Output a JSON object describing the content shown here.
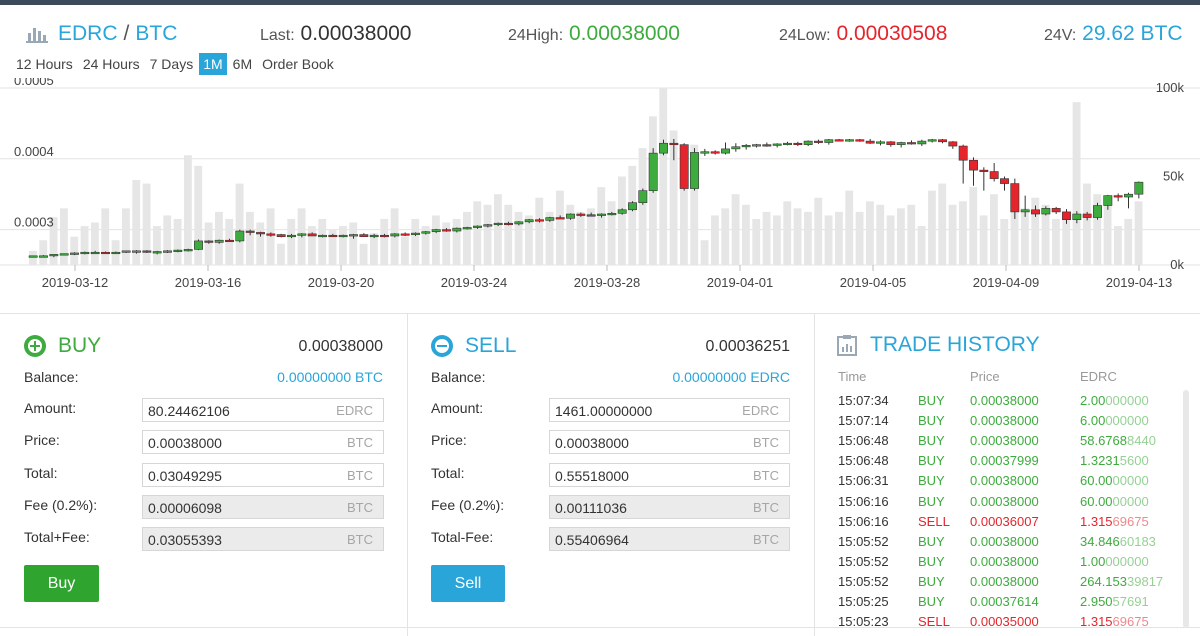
{
  "header": {
    "base": "EDRC",
    "quote": "BTC",
    "last_label": "Last:",
    "last_value": "0.00038000",
    "high_label": "24High:",
    "high_value": "0.00038000",
    "low_label": "24Low:",
    "low_value": "0.00030508",
    "vol_label": "24V:",
    "vol_value": "29.62 BTC"
  },
  "tabs": [
    "12 Hours",
    "24 Hours",
    "7 Days",
    "1M",
    "6M",
    "Order Book"
  ],
  "active_tab": "1M",
  "colors": {
    "up": "#3eab3e",
    "down": "#e5242b",
    "accent": "#29a5d9",
    "volume": "#e6e6e6"
  },
  "chart_data": {
    "type": "candlestick",
    "price_axis": {
      "range": [
        0.00025,
        0.0005
      ],
      "ticks": [
        "0.0005",
        "0.0004",
        "0.0003"
      ]
    },
    "volume_axis": {
      "range": [
        0,
        100000
      ],
      "ticks": [
        "100k",
        "50k",
        "0k"
      ]
    },
    "x_ticks": [
      "2019-03-12",
      "2019-03-16",
      "2019-03-20",
      "2019-03-24",
      "2019-03-28",
      "2019-04-01",
      "2019-04-05",
      "2019-04-09",
      "2019-04-13"
    ],
    "candles": [
      {
        "o": 0.000262,
        "h": 0.000263,
        "l": 0.000261,
        "c": 0.000263,
        "v": 8000
      },
      {
        "o": 0.000263,
        "h": 0.000264,
        "l": 0.000262,
        "c": 0.000263,
        "v": 14000
      },
      {
        "o": 0.000263,
        "h": 0.000265,
        "l": 0.000261,
        "c": 0.000265,
        "v": 27000
      },
      {
        "o": 0.000265,
        "h": 0.000266,
        "l": 0.000264,
        "c": 0.000266,
        "v": 32000
      },
      {
        "o": 0.000266,
        "h": 0.000268,
        "l": 0.000264,
        "c": 0.000267,
        "v": 16000
      },
      {
        "o": 0.000267,
        "h": 0.000269,
        "l": 0.000265,
        "c": 0.000268,
        "v": 22000
      },
      {
        "o": 0.000268,
        "h": 0.00027,
        "l": 0.000266,
        "c": 0.000268,
        "v": 24000
      },
      {
        "o": 0.000268,
        "h": 0.000269,
        "l": 0.000266,
        "c": 0.000267,
        "v": 32000
      },
      {
        "o": 0.000267,
        "h": 0.000269,
        "l": 0.000266,
        "c": 0.000268,
        "v": 14000
      },
      {
        "o": 0.000268,
        "h": 0.00027,
        "l": 0.000267,
        "c": 0.00027,
        "v": 32000
      },
      {
        "o": 0.00027,
        "h": 0.000271,
        "l": 0.000266,
        "c": 0.00027,
        "v": 48000
      },
      {
        "o": 0.00027,
        "h": 0.000271,
        "l": 0.000267,
        "c": 0.000268,
        "v": 46000
      },
      {
        "o": 0.000268,
        "h": 0.00027,
        "l": 0.000265,
        "c": 0.000269,
        "v": 22000
      },
      {
        "o": 0.000269,
        "h": 0.000271,
        "l": 0.000267,
        "c": 0.00027,
        "v": 28000
      },
      {
        "o": 0.00027,
        "h": 0.000272,
        "l": 0.000268,
        "c": 0.000271,
        "v": 26000
      },
      {
        "o": 0.000271,
        "h": 0.000273,
        "l": 0.000269,
        "c": 0.000272,
        "v": 62000
      },
      {
        "o": 0.000272,
        "h": 0.000286,
        "l": 0.000271,
        "c": 0.000284,
        "v": 56000
      },
      {
        "o": 0.000284,
        "h": 0.000285,
        "l": 0.00028,
        "c": 0.000282,
        "v": 24000
      },
      {
        "o": 0.000282,
        "h": 0.000286,
        "l": 0.00028,
        "c": 0.000285,
        "v": 30000
      },
      {
        "o": 0.000285,
        "h": 0.000287,
        "l": 0.000283,
        "c": 0.000284,
        "v": 26000
      },
      {
        "o": 0.000284,
        "h": 0.0003,
        "l": 0.000282,
        "c": 0.000298,
        "v": 46000
      },
      {
        "o": 0.000298,
        "h": 0.0003,
        "l": 0.000292,
        "c": 0.000296,
        "v": 30000
      },
      {
        "o": 0.000296,
        "h": 0.000297,
        "l": 0.00029,
        "c": 0.000294,
        "v": 24000
      },
      {
        "o": 0.000294,
        "h": 0.000296,
        "l": 0.00029,
        "c": 0.000293,
        "v": 32000
      },
      {
        "o": 0.000293,
        "h": 0.000294,
        "l": 0.000289,
        "c": 0.00029,
        "v": 12000
      },
      {
        "o": 0.00029,
        "h": 0.000294,
        "l": 0.000288,
        "c": 0.000292,
        "v": 26000
      },
      {
        "o": 0.000292,
        "h": 0.000295,
        "l": 0.000289,
        "c": 0.000294,
        "v": 32000
      },
      {
        "o": 0.000294,
        "h": 0.000296,
        "l": 0.000291,
        "c": 0.000291,
        "v": 22000
      },
      {
        "o": 0.000291,
        "h": 0.000293,
        "l": 0.000289,
        "c": 0.000292,
        "v": 26000
      },
      {
        "o": 0.000292,
        "h": 0.000294,
        "l": 0.00029,
        "c": 0.000291,
        "v": 20000
      },
      {
        "o": 0.000291,
        "h": 0.000293,
        "l": 0.000289,
        "c": 0.000292,
        "v": 22000
      },
      {
        "o": 0.000292,
        "h": 0.000294,
        "l": 0.000287,
        "c": 0.000293,
        "v": 24000
      },
      {
        "o": 0.000293,
        "h": 0.000295,
        "l": 0.00029,
        "c": 0.00029,
        "v": 12000
      },
      {
        "o": 0.00029,
        "h": 0.000294,
        "l": 0.000288,
        "c": 0.000292,
        "v": 18000
      },
      {
        "o": 0.000292,
        "h": 0.000294,
        "l": 0.000289,
        "c": 0.000291,
        "v": 26000
      },
      {
        "o": 0.000291,
        "h": 0.000295,
        "l": 0.000289,
        "c": 0.000294,
        "v": 32000
      },
      {
        "o": 0.000294,
        "h": 0.000296,
        "l": 0.000291,
        "c": 0.000293,
        "v": 16000
      },
      {
        "o": 0.000293,
        "h": 0.000296,
        "l": 0.000291,
        "c": 0.000295,
        "v": 26000
      },
      {
        "o": 0.000295,
        "h": 0.000298,
        "l": 0.000293,
        "c": 0.000297,
        "v": 22000
      },
      {
        "o": 0.000297,
        "h": 0.000301,
        "l": 0.000295,
        "c": 0.0003,
        "v": 28000
      },
      {
        "o": 0.0003,
        "h": 0.000302,
        "l": 0.000297,
        "c": 0.000298,
        "v": 24000
      },
      {
        "o": 0.000298,
        "h": 0.000303,
        "l": 0.000296,
        "c": 0.000302,
        "v": 26000
      },
      {
        "o": 0.000302,
        "h": 0.000304,
        "l": 0.0003,
        "c": 0.000303,
        "v": 30000
      },
      {
        "o": 0.000303,
        "h": 0.000306,
        "l": 0.000301,
        "c": 0.000305,
        "v": 36000
      },
      {
        "o": 0.000305,
        "h": 0.000308,
        "l": 0.000303,
        "c": 0.000307,
        "v": 34000
      },
      {
        "o": 0.000307,
        "h": 0.00031,
        "l": 0.000305,
        "c": 0.000309,
        "v": 40000
      },
      {
        "o": 0.000309,
        "h": 0.000311,
        "l": 0.000306,
        "c": 0.000308,
        "v": 34000
      },
      {
        "o": 0.000308,
        "h": 0.000312,
        "l": 0.000306,
        "c": 0.000311,
        "v": 30000
      },
      {
        "o": 0.000311,
        "h": 0.000315,
        "l": 0.000309,
        "c": 0.000314,
        "v": 28000
      },
      {
        "o": 0.000314,
        "h": 0.000316,
        "l": 0.00031,
        "c": 0.000313,
        "v": 38000
      },
      {
        "o": 0.000313,
        "h": 0.000318,
        "l": 0.000311,
        "c": 0.000317,
        "v": 30000
      },
      {
        "o": 0.000317,
        "h": 0.00032,
        "l": 0.000315,
        "c": 0.000316,
        "v": 42000
      },
      {
        "o": 0.000316,
        "h": 0.000323,
        "l": 0.000314,
        "c": 0.000322,
        "v": 34000
      },
      {
        "o": 0.000322,
        "h": 0.000324,
        "l": 0.000318,
        "c": 0.000321,
        "v": 30000
      },
      {
        "o": 0.000321,
        "h": 0.000324,
        "l": 0.000319,
        "c": 0.00032,
        "v": 32000
      },
      {
        "o": 0.00032,
        "h": 0.000323,
        "l": 0.000317,
        "c": 0.000322,
        "v": 44000
      },
      {
        "o": 0.000322,
        "h": 0.000325,
        "l": 0.00032,
        "c": 0.000323,
        "v": 36000
      },
      {
        "o": 0.000323,
        "h": 0.00033,
        "l": 0.000321,
        "c": 0.000328,
        "v": 50000
      },
      {
        "o": 0.000328,
        "h": 0.00034,
        "l": 0.000326,
        "c": 0.000338,
        "v": 56000
      },
      {
        "o": 0.000338,
        "h": 0.000358,
        "l": 0.000335,
        "c": 0.000355,
        "v": 66000
      },
      {
        "o": 0.000355,
        "h": 0.000415,
        "l": 0.000352,
        "c": 0.000408,
        "v": 84000
      },
      {
        "o": 0.000408,
        "h": 0.000427,
        "l": 0.000405,
        "c": 0.000422,
        "v": 100000
      },
      {
        "o": 0.000422,
        "h": 0.000428,
        "l": 0.000398,
        "c": 0.00042,
        "v": 76000
      },
      {
        "o": 0.00042,
        "h": 0.000422,
        "l": 0.000355,
        "c": 0.000358,
        "v": 64000
      },
      {
        "o": 0.000358,
        "h": 0.000415,
        "l": 0.000355,
        "c": 0.000409,
        "v": 68000
      },
      {
        "o": 0.000409,
        "h": 0.000414,
        "l": 0.000404,
        "c": 0.00041,
        "v": 14000
      },
      {
        "o": 0.00041,
        "h": 0.000412,
        "l": 0.000406,
        "c": 0.000408,
        "v": 28000
      },
      {
        "o": 0.000408,
        "h": 0.000423,
        "l": 0.000406,
        "c": 0.000414,
        "v": 32000
      },
      {
        "o": 0.000414,
        "h": 0.000422,
        "l": 0.00041,
        "c": 0.000417,
        "v": 40000
      },
      {
        "o": 0.000417,
        "h": 0.000421,
        "l": 0.000413,
        "c": 0.000419,
        "v": 34000
      },
      {
        "o": 0.000419,
        "h": 0.000421,
        "l": 0.000416,
        "c": 0.00042,
        "v": 26000
      },
      {
        "o": 0.00042,
        "h": 0.000423,
        "l": 0.000417,
        "c": 0.000419,
        "v": 30000
      },
      {
        "o": 0.000419,
        "h": 0.000422,
        "l": 0.000416,
        "c": 0.000421,
        "v": 28000
      },
      {
        "o": 0.000421,
        "h": 0.000424,
        "l": 0.000419,
        "c": 0.000422,
        "v": 36000
      },
      {
        "o": 0.000422,
        "h": 0.000424,
        "l": 0.000418,
        "c": 0.00042,
        "v": 32000
      },
      {
        "o": 0.00042,
        "h": 0.000426,
        "l": 0.000418,
        "c": 0.000425,
        "v": 30000
      },
      {
        "o": 0.000425,
        "h": 0.000427,
        "l": 0.000421,
        "c": 0.000423,
        "v": 38000
      },
      {
        "o": 0.000423,
        "h": 0.000428,
        "l": 0.00042,
        "c": 0.000427,
        "v": 28000
      },
      {
        "o": 0.000427,
        "h": 0.000428,
        "l": 0.000425,
        "c": 0.000426,
        "v": 30000
      },
      {
        "o": 0.000426,
        "h": 0.000428,
        "l": 0.000424,
        "c": 0.000427,
        "v": 42000
      },
      {
        "o": 0.000427,
        "h": 0.000428,
        "l": 0.000424,
        "c": 0.000425,
        "v": 30000
      },
      {
        "o": 0.000425,
        "h": 0.000428,
        "l": 0.000421,
        "c": 0.000422,
        "v": 36000
      },
      {
        "o": 0.000422,
        "h": 0.000426,
        "l": 0.000419,
        "c": 0.000424,
        "v": 34000
      },
      {
        "o": 0.000424,
        "h": 0.000425,
        "l": 0.000417,
        "c": 0.00042,
        "v": 28000
      },
      {
        "o": 0.00042,
        "h": 0.000424,
        "l": 0.000416,
        "c": 0.000423,
        "v": 32000
      },
      {
        "o": 0.000423,
        "h": 0.000426,
        "l": 0.00042,
        "c": 0.000421,
        "v": 34000
      },
      {
        "o": 0.000421,
        "h": 0.000427,
        "l": 0.000418,
        "c": 0.000425,
        "v": 22000
      },
      {
        "o": 0.000425,
        "h": 0.000428,
        "l": 0.000423,
        "c": 0.000427,
        "v": 42000
      },
      {
        "o": 0.000427,
        "h": 0.000428,
        "l": 0.000422,
        "c": 0.000424,
        "v": 46000
      },
      {
        "o": 0.000424,
        "h": 0.000425,
        "l": 0.000414,
        "c": 0.000418,
        "v": 34000
      },
      {
        "o": 0.000418,
        "h": 0.00042,
        "l": 0.000365,
        "c": 0.000398,
        "v": 36000
      },
      {
        "o": 0.000398,
        "h": 0.000402,
        "l": 0.000362,
        "c": 0.000384,
        "v": 44000
      },
      {
        "o": 0.000384,
        "h": 0.000388,
        "l": 0.000355,
        "c": 0.000382,
        "v": 28000
      },
      {
        "o": 0.000382,
        "h": 0.000394,
        "l": 0.000368,
        "c": 0.000372,
        "v": 40000
      },
      {
        "o": 0.000372,
        "h": 0.000375,
        "l": 0.000355,
        "c": 0.000365,
        "v": 26000
      },
      {
        "o": 0.000365,
        "h": 0.000372,
        "l": 0.000315,
        "c": 0.000325,
        "v": 46000
      },
      {
        "o": 0.000325,
        "h": 0.000348,
        "l": 0.000318,
        "c": 0.000328,
        "v": 32000
      },
      {
        "o": 0.000328,
        "h": 0.000334,
        "l": 0.000318,
        "c": 0.000322,
        "v": 38000
      },
      {
        "o": 0.000322,
        "h": 0.000333,
        "l": 0.00032,
        "c": 0.00033,
        "v": 34000
      },
      {
        "o": 0.00033,
        "h": 0.000332,
        "l": 0.000322,
        "c": 0.000325,
        "v": 26000
      },
      {
        "o": 0.000325,
        "h": 0.000329,
        "l": 0.000308,
        "c": 0.000314,
        "v": 30000
      },
      {
        "o": 0.000314,
        "h": 0.000326,
        "l": 0.000309,
        "c": 0.000322,
        "v": 92000
      },
      {
        "o": 0.000322,
        "h": 0.000325,
        "l": 0.000313,
        "c": 0.000317,
        "v": 46000
      },
      {
        "o": 0.000317,
        "h": 0.000338,
        "l": 0.000314,
        "c": 0.000334,
        "v": 40000
      },
      {
        "o": 0.000334,
        "h": 0.000349,
        "l": 0.000328,
        "c": 0.000348,
        "v": 34000
      },
      {
        "o": 0.000348,
        "h": 0.000351,
        "l": 0.00034,
        "c": 0.000346,
        "v": 22000
      },
      {
        "o": 0.000346,
        "h": 0.000352,
        "l": 0.00033,
        "c": 0.00035,
        "v": 26000
      },
      {
        "o": 0.00035,
        "h": 0.000368,
        "l": 0.000344,
        "c": 0.000367,
        "v": 36000
      }
    ]
  },
  "buy": {
    "title": "BUY",
    "price": "0.00038000",
    "balance_label": "Balance:",
    "balance_value": "0.00000000 BTC",
    "amount_label": "Amount:",
    "amount_value": "80.24462106",
    "amount_unit": "EDRC",
    "price_label": "Price:",
    "price_value": "0.00038000",
    "price_unit": "BTC",
    "total_label": "Total:",
    "total_value": "0.03049295",
    "total_unit": "BTC",
    "fee_label": "Fee (0.2%):",
    "fee_value": "0.00006098",
    "fee_unit": "BTC",
    "totalfee_label": "Total+Fee:",
    "totalfee_value": "0.03055393",
    "totalfee_unit": "BTC",
    "button": "Buy"
  },
  "sell": {
    "title": "SELL",
    "price": "0.00036251",
    "balance_label": "Balance:",
    "balance_value": "0.00000000 EDRC",
    "amount_label": "Amount:",
    "amount_value": "1461.00000000",
    "amount_unit": "EDRC",
    "price_label": "Price:",
    "price_value": "0.00038000",
    "price_unit": "BTC",
    "total_label": "Total:",
    "total_value": "0.55518000",
    "total_unit": "BTC",
    "fee_label": "Fee (0.2%):",
    "fee_value": "0.00111036",
    "fee_unit": "BTC",
    "totalfee_label": "Total-Fee:",
    "totalfee_value": "0.55406964",
    "totalfee_unit": "BTC",
    "button": "Sell"
  },
  "history": {
    "title": "TRADE HISTORY",
    "col_time": "Time",
    "col_price": "Price",
    "col_amount": "EDRC",
    "rows": [
      {
        "time": "15:07:34",
        "type": "BUY",
        "price": "0.00038000",
        "amt_main": "2.00",
        "amt_dim": "000000"
      },
      {
        "time": "15:07:14",
        "type": "BUY",
        "price": "0.00038000",
        "amt_main": "6.00",
        "amt_dim": "000000"
      },
      {
        "time": "15:06:48",
        "type": "BUY",
        "price": "0.00038000",
        "amt_main": "58.6768",
        "amt_dim": "8440"
      },
      {
        "time": "15:06:48",
        "type": "BUY",
        "price": "0.00037999",
        "amt_main": "1.3231",
        "amt_dim": "5600"
      },
      {
        "time": "15:06:31",
        "type": "BUY",
        "price": "0.00038000",
        "amt_main": "60.00",
        "amt_dim": "00000"
      },
      {
        "time": "15:06:16",
        "type": "BUY",
        "price": "0.00038000",
        "amt_main": "60.00",
        "amt_dim": "00000"
      },
      {
        "time": "15:06:16",
        "type": "SELL",
        "price": "0.00036007",
        "amt_main": "1.315",
        "amt_dim": "69675"
      },
      {
        "time": "15:05:52",
        "type": "BUY",
        "price": "0.00038000",
        "amt_main": "34.846",
        "amt_dim": "60183"
      },
      {
        "time": "15:05:52",
        "type": "BUY",
        "price": "0.00038000",
        "amt_main": "1.00",
        "amt_dim": "000000"
      },
      {
        "time": "15:05:52",
        "type": "BUY",
        "price": "0.00038000",
        "amt_main": "264.153",
        "amt_dim": "39817"
      },
      {
        "time": "15:05:25",
        "type": "BUY",
        "price": "0.00037614",
        "amt_main": "2.950",
        "amt_dim": "57691"
      },
      {
        "time": "15:05:23",
        "type": "SELL",
        "price": "0.00035000",
        "amt_main": "1.315",
        "amt_dim": "69675"
      }
    ]
  }
}
